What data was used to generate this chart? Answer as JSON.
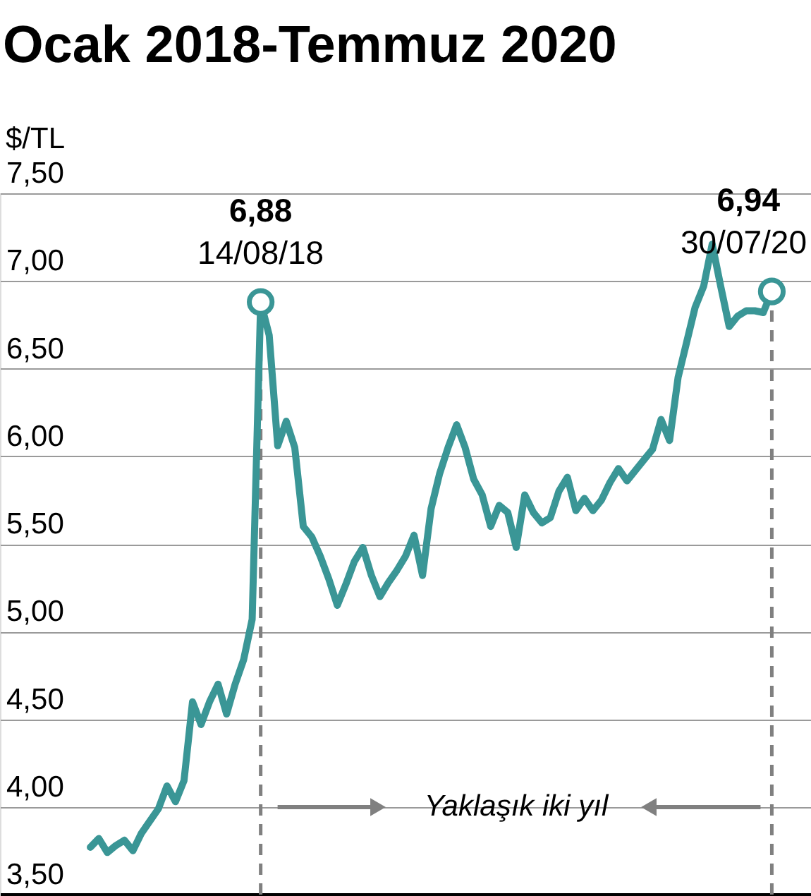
{
  "chart_data": {
    "type": "line",
    "title": "Ocak 2018-Temmuz 2020",
    "ylabel": "$/TL",
    "categories": [
      null,
      null,
      null,
      null,
      null,
      null,
      null,
      null,
      null,
      null,
      null,
      null,
      null,
      null,
      null,
      null,
      null,
      null,
      null,
      null,
      null,
      null,
      null,
      null,
      null,
      null,
      null,
      null,
      null,
      null,
      null,
      null,
      null,
      null,
      null,
      null,
      null,
      null,
      null,
      null,
      null,
      null,
      null,
      null,
      null,
      null,
      null,
      null,
      null,
      null,
      null,
      null,
      null,
      null,
      null,
      null,
      null,
      null,
      null,
      null,
      null,
      null,
      null,
      null,
      null,
      null,
      null,
      null,
      null,
      null,
      null,
      null,
      null,
      null,
      null,
      null,
      null,
      null,
      null,
      null,
      null
    ],
    "ylim": [
      3.5,
      7.5
    ],
    "yticks": [
      {
        "value": 3.5,
        "label": "3,50"
      },
      {
        "value": 4.0,
        "label": "4,00"
      },
      {
        "value": 4.5,
        "label": "4,50"
      },
      {
        "value": 5.0,
        "label": "5,00"
      },
      {
        "value": 5.5,
        "label": "5,50"
      },
      {
        "value": 6.0,
        "label": "6,00"
      },
      {
        "value": 6.5,
        "label": "6,50"
      },
      {
        "value": 7.0,
        "label": "7,00"
      },
      {
        "value": 7.5,
        "label": "7,50"
      }
    ],
    "grid": "y",
    "tick_labels": "y",
    "series": [
      {
        "color": "#3a9696",
        "marker": "none",
        "values": [
          3.77,
          3.82,
          3.74,
          3.78,
          3.81,
          3.75,
          3.85,
          3.92,
          3.99,
          4.12,
          4.03,
          4.15,
          4.6,
          4.47,
          4.6,
          4.7,
          4.53,
          4.7,
          4.84,
          5.07,
          6.88,
          6.69,
          6.06,
          6.2,
          6.05,
          5.6,
          5.54,
          5.43,
          5.3,
          5.15,
          5.27,
          5.4,
          5.48,
          5.32,
          5.2,
          5.28,
          5.35,
          5.43,
          5.55,
          5.32,
          5.7,
          5.9,
          6.05,
          6.18,
          6.05,
          5.87,
          5.78,
          5.6,
          5.72,
          5.68,
          5.48,
          5.78,
          5.68,
          5.62,
          5.65,
          5.8,
          5.88,
          5.69,
          5.76,
          5.69,
          5.75,
          5.85,
          5.93,
          5.86,
          5.92,
          5.98,
          6.04,
          6.21,
          6.09,
          6.45,
          6.65,
          6.85,
          6.97,
          7.21,
          6.97,
          6.74,
          6.8,
          6.83,
          6.83,
          6.82,
          6.94
        ]
      },
      {
        "type": "scatter",
        "color": "#3a9696",
        "marker": "circle",
        "values": [
          null,
          null,
          null,
          null,
          null,
          null,
          null,
          null,
          null,
          null,
          null,
          null,
          null,
          null,
          null,
          null,
          null,
          null,
          null,
          null,
          6.88,
          null,
          null,
          null,
          null,
          null,
          null,
          null,
          null,
          null,
          null,
          null,
          null,
          null,
          null,
          null,
          null,
          null,
          null,
          null,
          null,
          null,
          null,
          null,
          null,
          null,
          null,
          null,
          null,
          null,
          null,
          null,
          null,
          null,
          null,
          null,
          null,
          null,
          null,
          null,
          null,
          null,
          null,
          null,
          null,
          null,
          null,
          null,
          null,
          null,
          null,
          null,
          null,
          null,
          null,
          null,
          null,
          null,
          null,
          null,
          6.94
        ]
      }
    ],
    "annotations": [
      {
        "text": "6,88",
        "y": 6.88
      },
      {
        "text": "14/08/18",
        "y": 6.88
      },
      "6,94",
      "30/07/20",
      "Yaklaşık iki yıl"
    ]
  }
}
